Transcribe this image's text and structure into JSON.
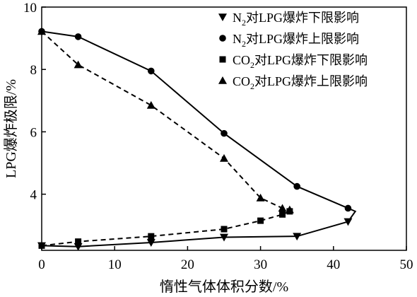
{
  "chart_data": {
    "type": "line",
    "title": "",
    "xlabel": "惰性气体体积分数/%",
    "ylabel": "LPG爆炸极限/%",
    "xlim": [
      0,
      50
    ],
    "ylim": [
      2.2,
      10
    ],
    "xticks": [
      "0",
      "10",
      "20",
      "30",
      "40",
      "50"
    ],
    "yticks": [
      "4",
      "6",
      "8",
      "10"
    ],
    "grid": false,
    "legend_position": "top-right",
    "series": [
      {
        "name": "N₂对LPG爆炸下限影响",
        "legend_main": "N",
        "legend_sub": "2",
        "legend_rest": "对LPG爆炸下限影响",
        "marker": "triangle-down",
        "line_style": "solid",
        "x": [
          0,
          5,
          15,
          25,
          35,
          42
        ],
        "y": [
          2.35,
          2.32,
          2.45,
          2.62,
          2.65,
          3.12
        ]
      },
      {
        "name": "N₂对LPG爆炸上限影响",
        "legend_main": "N",
        "legend_sub": "2",
        "legend_rest": "对LPG爆炸上限影响",
        "marker": "circle",
        "line_style": "solid",
        "x": [
          0,
          5,
          15,
          25,
          35,
          42
        ],
        "y": [
          9.22,
          9.05,
          7.95,
          5.95,
          4.25,
          3.55
        ]
      },
      {
        "name": "CO₂对LPG爆炸下限影响",
        "legend_main": "CO",
        "legend_sub": "2",
        "legend_rest": "对LPG爆炸下限影响",
        "marker": "square",
        "line_style": "dashed",
        "x": [
          0,
          5,
          15,
          25,
          30,
          33,
          34
        ],
        "y": [
          2.35,
          2.48,
          2.65,
          2.88,
          3.15,
          3.35,
          3.45
        ]
      },
      {
        "name": "CO₂对LPG爆炸上限影响",
        "legend_main": "CO",
        "legend_sub": "2",
        "legend_rest": "对LPG爆炸上限影响",
        "marker": "triangle-up",
        "line_style": "dashed",
        "x": [
          0,
          5,
          15,
          25,
          30,
          33,
          34
        ],
        "y": [
          9.22,
          8.15,
          6.85,
          5.15,
          3.88,
          3.55,
          3.5
        ]
      }
    ],
    "closing_segment": {
      "line_style": "solid",
      "points": [
        [
          42,
          3.12
        ],
        [
          43,
          3.45
        ],
        [
          42,
          3.55
        ]
      ]
    }
  }
}
